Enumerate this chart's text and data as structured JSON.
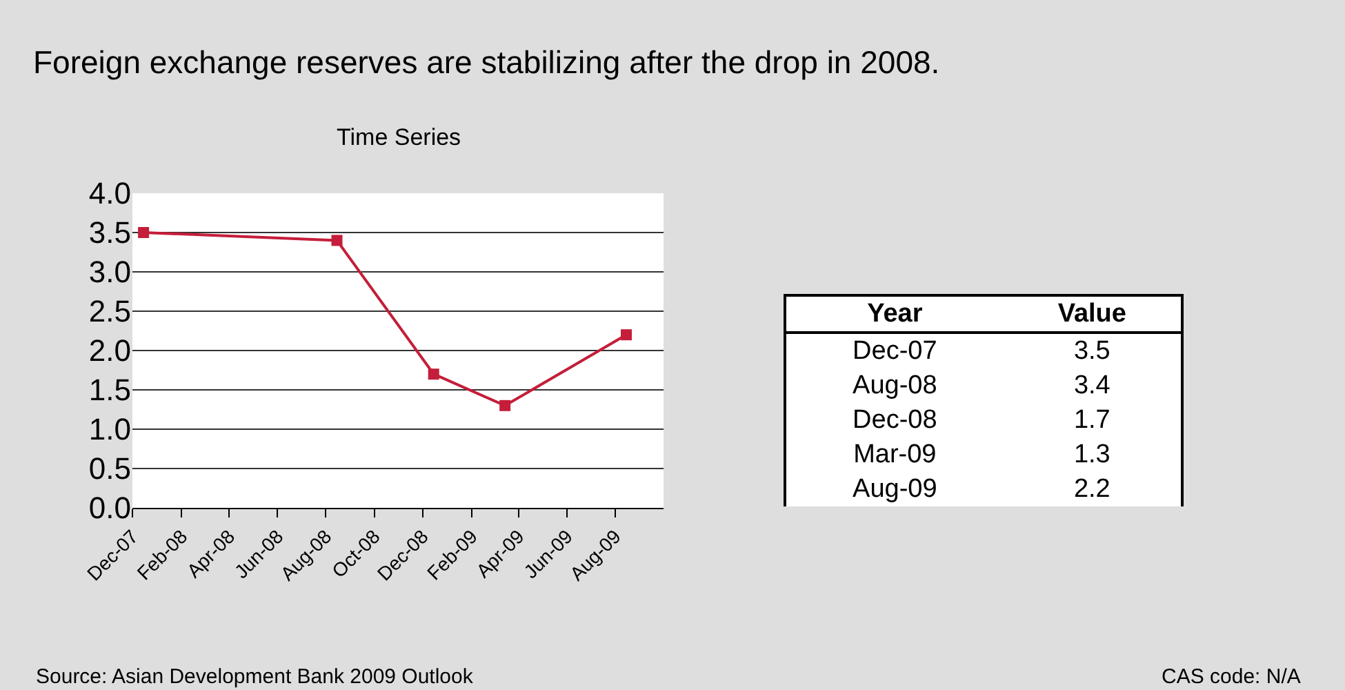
{
  "chart_data": [
    {
      "type": "line",
      "title": "Foreign exchange reserves are stabilizing after the drop in 2008.",
      "subtitle": "Time Series",
      "x": [
        "2007-12-15",
        "2008-08-15",
        "2008-12-15",
        "2009-03-15",
        "2009-08-15"
      ],
      "series": [
        {
          "color": "#c41e3a",
          "values": [
            3.5,
            3.4,
            1.7,
            1.3,
            2.2
          ]
        }
      ],
      "xlim": [
        "2007-12-01",
        "2009-10-01"
      ],
      "xticks": [
        {
          "value": "2007-12-01",
          "label": "Dec-07"
        },
        {
          "value": "2008-02-01",
          "label": "Feb-08"
        },
        {
          "value": "2008-04-01",
          "label": "Apr-08"
        },
        {
          "value": "2008-06-01",
          "label": "Jun-08"
        },
        {
          "value": "2008-08-01",
          "label": "Aug-08"
        },
        {
          "value": "2008-10-01",
          "label": "Oct-08"
        },
        {
          "value": "2008-12-01",
          "label": "Dec-08"
        },
        {
          "value": "2009-02-01",
          "label": "Feb-09"
        },
        {
          "value": "2009-04-01",
          "label": "Apr-09"
        },
        {
          "value": "2009-06-01",
          "label": "Jun-09"
        },
        {
          "value": "2009-08-01",
          "label": "Aug-09"
        }
      ],
      "ylim": [
        0,
        4
      ],
      "yticks": [
        {
          "value": 0,
          "label": "0.0"
        },
        {
          "value": 0.5,
          "label": "0.5"
        },
        {
          "value": 1,
          "label": "1.0"
        },
        {
          "value": 1.5,
          "label": "1.5"
        },
        {
          "value": 2,
          "label": "2.0"
        },
        {
          "value": 2.5,
          "label": "2.5"
        },
        {
          "value": 3,
          "label": "3.0"
        },
        {
          "value": 3.5,
          "label": "3.5"
        },
        {
          "value": 4,
          "label": "4.0"
        }
      ],
      "grid": "y",
      "marker": "square",
      "line_style": "solid",
      "annotations": [
        "Source: Asian Development Bank 2009 Outlook",
        "CAS code: N/A"
      ]
    },
    {
      "type": "other",
      "annotations": [
        "Year",
        "Value"
      ],
      "categories": [
        "Dec-07",
        "Aug-08",
        "Dec-08",
        "Mar-09",
        "Aug-09"
      ],
      "values": [
        3.5,
        3.4,
        1.7,
        1.3,
        2.2
      ],
      "data_labels": true
    }
  ]
}
